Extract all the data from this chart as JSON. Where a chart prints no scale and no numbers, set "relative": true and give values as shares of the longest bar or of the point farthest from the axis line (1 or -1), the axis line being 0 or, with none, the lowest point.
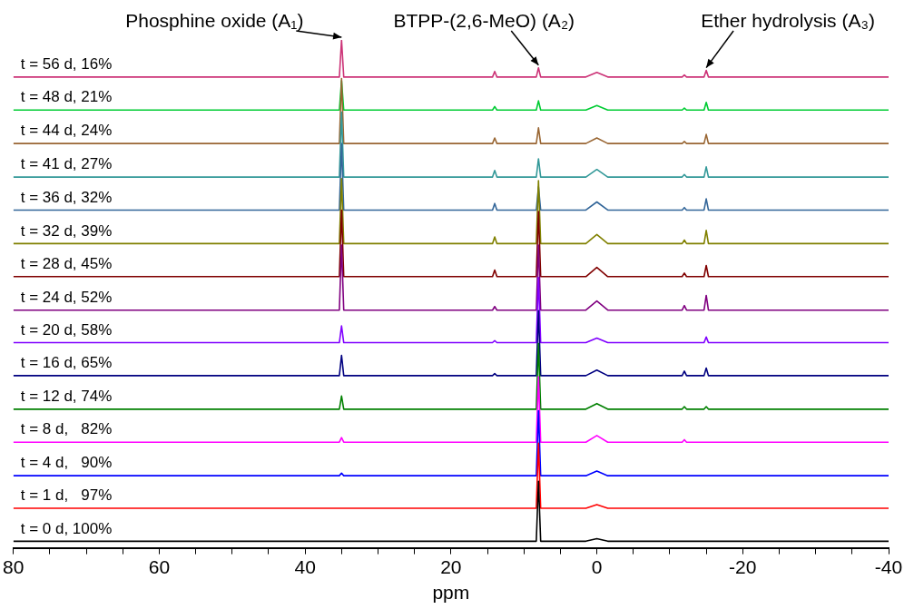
{
  "chart_data": {
    "type": "line",
    "relative": true,
    "xlabel": "ppm",
    "xlim": [
      80,
      -40
    ],
    "xticks": [
      80,
      {
        "value": 75,
        "label": null
      },
      {
        "value": 70,
        "label": null
      },
      {
        "value": 65,
        "label": null
      },
      60,
      {
        "value": 55,
        "label": null
      },
      {
        "value": 50,
        "label": null
      },
      {
        "value": 45,
        "label": null
      },
      40,
      {
        "value": 35,
        "label": null
      },
      {
        "value": 30,
        "label": null
      },
      {
        "value": 25,
        "label": null
      },
      20,
      {
        "value": 15,
        "label": null
      },
      {
        "value": 10,
        "label": null
      },
      {
        "value": 5,
        "label": null
      },
      0,
      {
        "value": -5,
        "label": null
      },
      {
        "value": -10,
        "label": null
      },
      {
        "value": -15,
        "label": null
      },
      -20,
      {
        "value": -25,
        "label": null
      },
      {
        "value": -30,
        "label": null
      },
      {
        "value": -35,
        "label": null
      },
      -40
    ],
    "tick_labels": "x",
    "grid": false,
    "legend": false,
    "marker": "none",
    "line_style": "solid",
    "x": [
      80,
      35.3,
      35,
      34.7,
      14.3,
      14,
      13.7,
      8.3,
      8,
      7.7,
      1.5,
      0,
      -1.5,
      -11.7,
      -12,
      -12.3,
      -14.7,
      -15,
      -15.3,
      -40
    ],
    "series": [
      {
        "name": "t = 0 d, 100%",
        "color": "#000000",
        "values": [
          0.013,
          0.013,
          0.013,
          0.013,
          0.013,
          0.013,
          0.013,
          0.013,
          0.131,
          0.013,
          0.013,
          0.018,
          0.013,
          0.013,
          0.013,
          0.013,
          0.013,
          0.013,
          0.013,
          0.013
        ]
      },
      {
        "name": "t = 1 d,   97%",
        "color": "#ff0000",
        "values": [
          0.078,
          0.078,
          0.078,
          0.078,
          0.078,
          0.078,
          0.078,
          0.078,
          0.206,
          0.078,
          0.078,
          0.085,
          0.078,
          0.078,
          0.078,
          0.078,
          0.078,
          0.078,
          0.078,
          0.078
        ]
      },
      {
        "name": "t = 4 d,   90%",
        "color": "#0000ff",
        "values": [
          0.142,
          0.142,
          0.147,
          0.142,
          0.142,
          0.142,
          0.142,
          0.142,
          0.27,
          0.142,
          0.142,
          0.151,
          0.142,
          0.142,
          0.142,
          0.142,
          0.142,
          0.142,
          0.142,
          0.142
        ]
      },
      {
        "name": "t = 8 d,   82%",
        "color": "#ff00ff",
        "values": [
          0.208,
          0.208,
          0.217,
          0.208,
          0.208,
          0.208,
          0.208,
          0.208,
          0.337,
          0.208,
          0.208,
          0.221,
          0.208,
          0.208,
          0.213,
          0.208,
          0.208,
          0.208,
          0.208,
          0.208
        ]
      },
      {
        "name": "t = 12 d, 74%",
        "color": "#008000",
        "values": [
          0.273,
          0.273,
          0.299,
          0.273,
          0.273,
          0.273,
          0.273,
          0.273,
          0.402,
          0.273,
          0.273,
          0.284,
          0.273,
          0.273,
          0.278,
          0.273,
          0.273,
          0.278,
          0.273,
          0.273
        ]
      },
      {
        "name": "t = 16 d, 65%",
        "color": "#000080",
        "values": [
          0.339,
          0.339,
          0.379,
          0.339,
          0.339,
          0.343,
          0.339,
          0.339,
          0.467,
          0.339,
          0.339,
          0.35,
          0.339,
          0.339,
          0.348,
          0.339,
          0.339,
          0.354,
          0.339,
          0.339
        ]
      },
      {
        "name": "t = 20 d, 58%",
        "color": "#8000ff",
        "values": [
          0.404,
          0.404,
          0.437,
          0.404,
          0.404,
          0.408,
          0.404,
          0.404,
          0.532,
          0.404,
          0.404,
          0.413,
          0.404,
          0.404,
          0.404,
          0.404,
          0.404,
          0.415,
          0.404,
          0.404
        ]
      },
      {
        "name": "t = 24 d, 52%",
        "color": "#800080",
        "values": [
          0.468,
          0.468,
          0.596,
          0.468,
          0.468,
          0.475,
          0.468,
          0.468,
          0.596,
          0.468,
          0.468,
          0.486,
          0.468,
          0.468,
          0.477,
          0.468,
          0.468,
          0.497,
          0.468,
          0.468
        ]
      },
      {
        "name": "t = 28 d, 45%",
        "color": "#800000",
        "values": [
          0.534,
          0.534,
          0.665,
          0.534,
          0.534,
          0.547,
          0.534,
          0.534,
          0.662,
          0.534,
          0.534,
          0.552,
          0.534,
          0.534,
          0.541,
          0.534,
          0.534,
          0.556,
          0.534,
          0.534
        ]
      },
      {
        "name": "t = 32 d, 39%",
        "color": "#808000",
        "values": [
          0.599,
          0.599,
          0.727,
          0.599,
          0.599,
          0.612,
          0.599,
          0.599,
          0.723,
          0.599,
          0.599,
          0.617,
          0.599,
          0.599,
          0.606,
          0.599,
          0.599,
          0.625,
          0.599,
          0.599
        ]
      },
      {
        "name": "t = 36 d, 32%",
        "color": "#336699",
        "values": [
          0.665,
          0.665,
          0.796,
          0.665,
          0.665,
          0.678,
          0.665,
          0.665,
          0.711,
          0.665,
          0.665,
          0.681,
          0.665,
          0.665,
          0.67,
          0.665,
          0.665,
          0.687,
          0.665,
          0.665
        ]
      },
      {
        "name": "t = 41 d, 27%",
        "color": "#339999",
        "values": [
          0.73,
          0.73,
          0.858,
          0.73,
          0.73,
          0.743,
          0.73,
          0.73,
          0.766,
          0.73,
          0.73,
          0.745,
          0.73,
          0.73,
          0.735,
          0.73,
          0.73,
          0.75,
          0.73,
          0.73
        ]
      },
      {
        "name": "t = 44 d, 24%",
        "color": "#996633",
        "values": [
          0.796,
          0.796,
          0.924,
          0.796,
          0.796,
          0.807,
          0.796,
          0.796,
          0.827,
          0.796,
          0.796,
          0.807,
          0.796,
          0.796,
          0.8,
          0.796,
          0.796,
          0.814,
          0.796,
          0.796
        ]
      },
      {
        "name": "t = 48 d, 21%",
        "color": "#00cc33",
        "values": [
          0.862,
          0.862,
          0.92,
          0.862,
          0.862,
          0.869,
          0.862,
          0.862,
          0.88,
          0.862,
          0.862,
          0.871,
          0.862,
          0.862,
          0.866,
          0.862,
          0.862,
          0.877,
          0.862,
          0.862
        ]
      },
      {
        "name": "t = 56 d, 16%",
        "color": "#cc3377",
        "values": [
          0.927,
          0.927,
          1.0,
          0.927,
          0.927,
          0.938,
          0.927,
          0.927,
          0.945,
          0.927,
          0.927,
          0.936,
          0.927,
          0.927,
          0.931,
          0.927,
          0.927,
          0.94,
          0.927,
          0.927
        ]
      }
    ],
    "annotations": [
      {
        "text": "Phosphine oxide (A₁)",
        "x": 35,
        "y": 1.0
      },
      {
        "text": "BTPP-(2,6-MeO) (A₂)",
        "x": 8,
        "y": 0.945
      },
      {
        "text": "Ether hydrolysis (A₃)",
        "x": -15,
        "y": 0.94
      }
    ]
  }
}
